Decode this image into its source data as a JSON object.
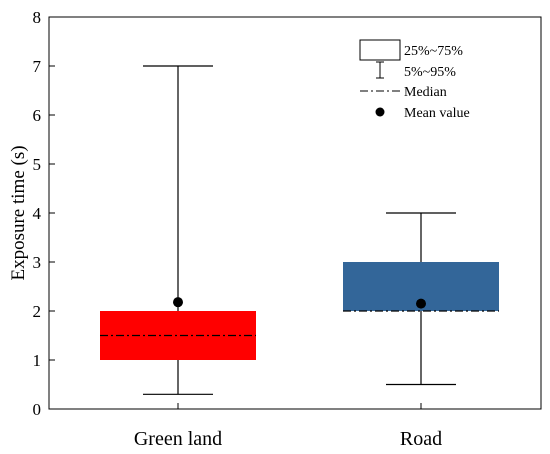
{
  "chart_data": {
    "type": "box",
    "ylabel": "Exposure time (s)",
    "ylim": [
      0,
      8
    ],
    "yticks": [
      0,
      1,
      2,
      3,
      4,
      5,
      6,
      7,
      8
    ],
    "categories": [
      "Green land",
      "Road"
    ],
    "boxes": [
      {
        "category": "Green land",
        "whisker_low": 0.3,
        "q1": 1.0,
        "median": 1.5,
        "q3": 2.0,
        "whisker_high": 7.0,
        "mean": 2.18,
        "color": "#ff0000"
      },
      {
        "category": "Road",
        "whisker_low": 0.5,
        "q1": 2.0,
        "median": 2.0,
        "q3": 3.0,
        "whisker_high": 4.0,
        "mean": 2.15,
        "color": "#336699"
      }
    ],
    "legend": {
      "placement": "top-right",
      "box_label": "25%~75%",
      "whisker_label": "5%~95%",
      "median_label": "Median",
      "mean_label": "Mean value"
    }
  }
}
